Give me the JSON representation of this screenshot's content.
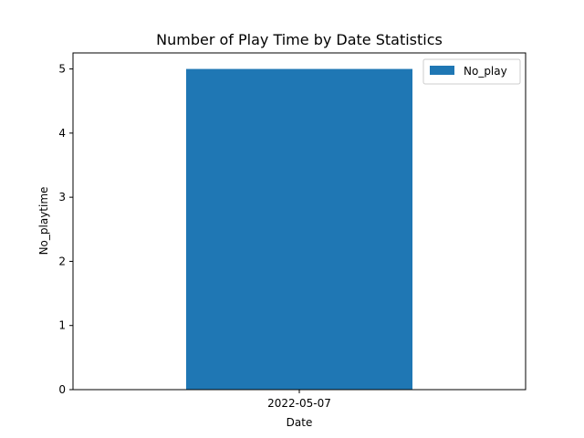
{
  "chart_data": {
    "type": "bar",
    "title": "Number of Play Time by Date Statistics",
    "xlabel": "Date",
    "ylabel": "No_playtime",
    "categories": [
      "2022-05-07"
    ],
    "series": [
      {
        "name": "No_play",
        "values": [
          5
        ],
        "color": "#1f77b4"
      }
    ],
    "ylim": [
      0,
      5.25
    ],
    "yticks": [
      0,
      1,
      2,
      3,
      4,
      5
    ],
    "grid": false,
    "legend": "top-right"
  }
}
